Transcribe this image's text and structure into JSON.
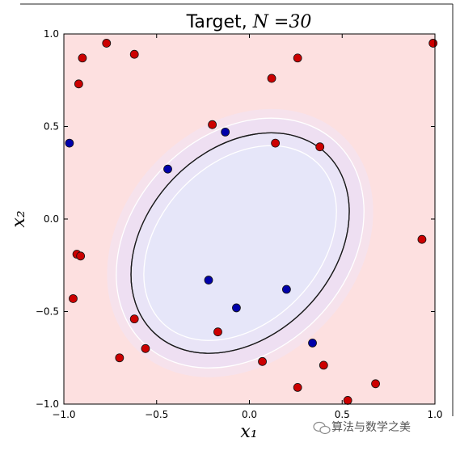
{
  "chart_data": {
    "type": "scatter",
    "title": "Target, N=30",
    "title_main": "Target, ",
    "title_var": "N",
    "title_eq": " =30",
    "xlabel": "x₁",
    "ylabel": "x₂",
    "xlim": [
      -1.0,
      1.0
    ],
    "ylim": [
      -1.0,
      1.0
    ],
    "xticks": [
      "−1.0",
      "−0.5",
      "0.0",
      "0.5",
      "1.0"
    ],
    "yticks": [
      "−1.0",
      "−0.5",
      "0.0",
      "0.5",
      "1.0"
    ],
    "grid": false,
    "legend": false,
    "background": {
      "outside_class_color": "#fde0e0",
      "inside_class_color": "#e6e6f9"
    },
    "decision_boundary": {
      "center": [
        -0.05,
        -0.13
      ],
      "semi_axes": [
        0.67,
        0.5
      ],
      "rotation_deg": -46,
      "color": "#1a1a1a",
      "white_contour_offsets": [
        -0.07,
        0.08
      ]
    },
    "series": [
      {
        "class": "red",
        "color": "#cc0000",
        "points": [
          [
            -0.77,
            0.95
          ],
          [
            -0.62,
            0.89
          ],
          [
            -0.9,
            0.87
          ],
          [
            -0.92,
            0.73
          ],
          [
            -0.2,
            0.51
          ],
          [
            0.12,
            0.76
          ],
          [
            0.26,
            0.87
          ],
          [
            0.14,
            0.41
          ],
          [
            0.38,
            0.39
          ],
          [
            0.99,
            0.95
          ],
          [
            0.93,
            -0.11
          ],
          [
            -0.93,
            -0.19
          ],
          [
            -0.91,
            -0.2
          ],
          [
            -0.95,
            -0.43
          ],
          [
            -0.62,
            -0.54
          ],
          [
            -0.7,
            -0.75
          ],
          [
            -0.56,
            -0.7
          ],
          [
            -0.17,
            -0.61
          ],
          [
            0.07,
            -0.77
          ],
          [
            0.26,
            -0.91
          ],
          [
            0.4,
            -0.79
          ],
          [
            0.53,
            -0.98
          ],
          [
            0.68,
            -0.89
          ]
        ]
      },
      {
        "class": "blue",
        "color": "#0000aa",
        "points": [
          [
            -0.97,
            0.41
          ],
          [
            -0.13,
            0.47
          ],
          [
            -0.44,
            0.27
          ],
          [
            -0.22,
            -0.33
          ],
          [
            -0.07,
            -0.48
          ],
          [
            0.2,
            -0.38
          ],
          [
            0.34,
            -0.67
          ]
        ]
      }
    ]
  },
  "watermark": {
    "text": "算法与数学之美"
  }
}
